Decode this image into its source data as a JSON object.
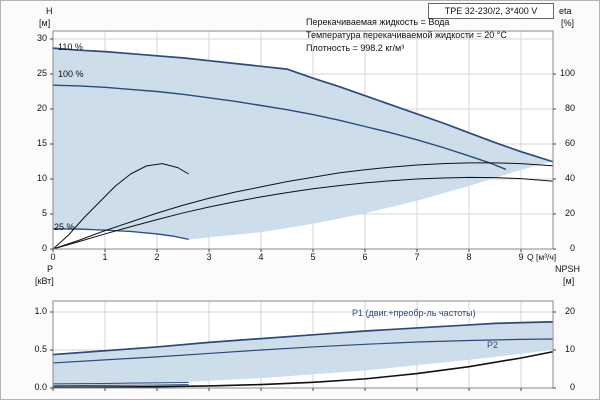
{
  "title_box": "TPE 32-230/2, 3*400 V",
  "info": {
    "line1": "Перекачиваемая жидкость = Вода",
    "line2": "Температура перекачиваемой жидкости = 20 °C",
    "line3": "Плотность = 998.2 кг/м³"
  },
  "labels": {
    "h": "H",
    "h_unit": "[м]",
    "eta": "eta",
    "eta_unit": "[%]",
    "q": "Q [м³/ч]",
    "p": "P",
    "p_unit": "[кВт]",
    "npsh": "NPSH",
    "npsh_unit": "[м]",
    "curve_110": "110 %",
    "curve_100": "100 %",
    "curve_25": "25 %",
    "p1": "P1 (двиг.+преобр-ль частоты)",
    "p2": "P2"
  },
  "colors": {
    "curve_blue": "#2b4a7d",
    "curve_black": "#111111",
    "envelope_fill": "#c8d9e8",
    "grid": "#d6d6d6"
  },
  "chart_data": [
    {
      "type": "line",
      "title": "H-Q pump curves with efficiency",
      "xlabel": "Q [м³/ч]",
      "ylabel": "H [м]",
      "y2label": "eta [%]",
      "xlim": [
        0,
        9.6
      ],
      "ylim": [
        0,
        31
      ],
      "y2lim": [
        0,
        124
      ],
      "grid": true,
      "x_ticks": [
        0,
        1,
        2,
        3,
        4,
        5,
        6,
        7,
        8,
        9
      ],
      "y_ticks": [
        0,
        5,
        10,
        15,
        20,
        25,
        30
      ],
      "y2_ticks": [
        0,
        20,
        40,
        60,
        80,
        100
      ],
      "envelope_fill": "#c8d9e8",
      "envelope": [
        [
          0,
          2.9
        ],
        [
          0.8,
          2.75
        ],
        [
          1.6,
          2.45
        ],
        [
          2.2,
          2.0
        ],
        [
          2.6,
          1.35
        ],
        [
          4,
          2.4
        ],
        [
          5,
          3.6
        ],
        [
          6,
          5.1
        ],
        [
          7,
          6.9
        ],
        [
          8,
          9.0
        ],
        [
          9,
          11.3
        ],
        [
          9.6,
          12.5
        ],
        [
          9.3,
          13.2
        ],
        [
          9,
          13.9
        ],
        [
          8.5,
          15.2
        ],
        [
          8,
          16.6
        ],
        [
          7.5,
          18.0
        ],
        [
          7,
          19.3
        ],
        [
          6.5,
          20.6
        ],
        [
          6,
          21.9
        ],
        [
          5.5,
          23.2
        ],
        [
          5,
          24.4
        ],
        [
          4.5,
          25.7
        ],
        [
          4,
          26.1
        ],
        [
          3.5,
          26.5
        ],
        [
          3,
          26.9
        ],
        [
          2.5,
          27.3
        ],
        [
          2,
          27.6
        ],
        [
          1.5,
          27.9
        ],
        [
          1,
          28.2
        ],
        [
          0.5,
          28.4
        ],
        [
          0,
          28.7
        ]
      ],
      "series": [
        {
          "name": "110 %",
          "axis": "y",
          "color": "#2b4a7d",
          "width": 1.7,
          "points": [
            [
              0,
              28.7
            ],
            [
              0.5,
              28.4
            ],
            [
              1,
              28.2
            ],
            [
              1.5,
              27.9
            ],
            [
              2,
              27.6
            ],
            [
              2.5,
              27.3
            ],
            [
              3,
              26.9
            ],
            [
              3.5,
              26.5
            ],
            [
              4,
              26.1
            ],
            [
              4.5,
              25.7
            ],
            [
              5,
              24.4
            ],
            [
              5.5,
              23.2
            ],
            [
              6,
              21.9
            ],
            [
              6.5,
              20.6
            ],
            [
              7,
              19.3
            ],
            [
              7.5,
              18.0
            ],
            [
              8,
              16.6
            ],
            [
              8.5,
              15.2
            ],
            [
              9,
              13.9
            ],
            [
              9.3,
              13.2
            ],
            [
              9.6,
              12.5
            ]
          ]
        },
        {
          "name": "100 %",
          "axis": "y",
          "color": "#2b4a7d",
          "width": 1.4,
          "points": [
            [
              0,
              23.4
            ],
            [
              0.5,
              23.3
            ],
            [
              1,
              23.1
            ],
            [
              1.5,
              22.8
            ],
            [
              2,
              22.5
            ],
            [
              2.5,
              22.1
            ],
            [
              3,
              21.6
            ],
            [
              3.5,
              21.1
            ],
            [
              4,
              20.5
            ],
            [
              4.5,
              19.9
            ],
            [
              5,
              19.2
            ],
            [
              5.5,
              18.4
            ],
            [
              6,
              17.5
            ],
            [
              6.5,
              16.6
            ],
            [
              7,
              15.6
            ],
            [
              7.5,
              14.5
            ],
            [
              8,
              13.3
            ],
            [
              8.4,
              12.3
            ],
            [
              8.7,
              11.4
            ]
          ]
        },
        {
          "name": "25 %",
          "axis": "y",
          "color": "#2b4a7d",
          "width": 1.3,
          "points": [
            [
              0,
              2.9
            ],
            [
              0.5,
              2.85
            ],
            [
              1,
              2.7
            ],
            [
              1.5,
              2.5
            ],
            [
              2,
              2.15
            ],
            [
              2.3,
              1.85
            ],
            [
              2.6,
              1.4
            ]
          ]
        },
        {
          "name": "eta pump",
          "axis": "y2",
          "color": "#111111",
          "width": 1,
          "points": [
            [
              0,
              0
            ],
            [
              0.5,
              5
            ],
            [
              1,
              10.5
            ],
            [
              1.5,
              15.5
            ],
            [
              2,
              20.5
            ],
            [
              2.5,
              25
            ],
            [
              3,
              29
            ],
            [
              3.5,
              32.5
            ],
            [
              4,
              35.5
            ],
            [
              4.5,
              38.5
            ],
            [
              5,
              41
            ],
            [
              5.5,
              43.5
            ],
            [
              6,
              45.3
            ],
            [
              6.5,
              46.8
            ],
            [
              7,
              48
            ],
            [
              7.5,
              48.8
            ],
            [
              8,
              49.2
            ],
            [
              8.5,
              49.2
            ],
            [
              9,
              48.8
            ],
            [
              9.6,
              47.6
            ]
          ]
        },
        {
          "name": "eta total",
          "axis": "y2",
          "color": "#111111",
          "width": 1,
          "points": [
            [
              0,
              0
            ],
            [
              0.5,
              4.2
            ],
            [
              1,
              8.6
            ],
            [
              1.5,
              12.8
            ],
            [
              2,
              16.8
            ],
            [
              2.5,
              20.6
            ],
            [
              3,
              24
            ],
            [
              3.5,
              27
            ],
            [
              4,
              29.8
            ],
            [
              4.5,
              32.2
            ],
            [
              5,
              34.4
            ],
            [
              5.5,
              36.2
            ],
            [
              6,
              37.8
            ],
            [
              6.5,
              39
            ],
            [
              7,
              40
            ],
            [
              7.5,
              40.6
            ],
            [
              8,
              40.9
            ],
            [
              8.5,
              40.8
            ],
            [
              9,
              40.2
            ],
            [
              9.6,
              38.8
            ]
          ]
        },
        {
          "name": "eta reduced speed",
          "axis": "y2",
          "color": "#111111",
          "width": 1,
          "points": [
            [
              0,
              0
            ],
            [
              0.3,
              8
            ],
            [
              0.6,
              18
            ],
            [
              0.9,
              27
            ],
            [
              1.2,
              36
            ],
            [
              1.5,
              43
            ],
            [
              1.8,
              47.5
            ],
            [
              2.1,
              48.8
            ],
            [
              2.4,
              46.5
            ],
            [
              2.6,
              43
            ]
          ]
        }
      ]
    },
    {
      "type": "line",
      "title": "Power and NPSH curves",
      "xlabel": "Q [м³/ч]",
      "ylabel": "P [кВт]",
      "y2label": "NPSH [м]",
      "xlim": [
        0,
        9.6
      ],
      "ylim": [
        0,
        1.14
      ],
      "y2lim": [
        0,
        22.9
      ],
      "grid": true,
      "x_ticks": [
        0,
        1,
        2,
        3,
        4,
        5,
        6,
        7,
        8,
        9
      ],
      "y_ticks": [
        0,
        0.5,
        1.0
      ],
      "y2_ticks": [
        0,
        10,
        20
      ],
      "envelope_fill": "#c8d9e8",
      "envelope": [
        [
          0,
          0.02
        ],
        [
          2,
          0.06
        ],
        [
          4,
          0.13
        ],
        [
          6,
          0.23
        ],
        [
          8,
          0.37
        ],
        [
          9,
          0.45
        ],
        [
          9.6,
          0.5
        ],
        [
          9.6,
          0.87
        ],
        [
          9,
          0.86
        ],
        [
          8.5,
          0.85
        ],
        [
          8,
          0.83
        ],
        [
          7,
          0.79
        ],
        [
          6,
          0.75
        ],
        [
          5,
          0.7
        ],
        [
          4,
          0.65
        ],
        [
          3,
          0.6
        ],
        [
          2,
          0.54
        ],
        [
          1,
          0.49
        ],
        [
          0,
          0.44
        ]
      ],
      "series": [
        {
          "name": "P1",
          "axis": "y",
          "color": "#2b4a7d",
          "width": 1.7,
          "points": [
            [
              0,
              0.44
            ],
            [
              1,
              0.49
            ],
            [
              2,
              0.54
            ],
            [
              3,
              0.6
            ],
            [
              4,
              0.65
            ],
            [
              5,
              0.7
            ],
            [
              6,
              0.75
            ],
            [
              7,
              0.79
            ],
            [
              8,
              0.83
            ],
            [
              8.5,
              0.85
            ],
            [
              9,
              0.86
            ],
            [
              9.6,
              0.87
            ]
          ]
        },
        {
          "name": "P2",
          "axis": "y",
          "color": "#2b4a7d",
          "width": 1.2,
          "points": [
            [
              0,
              0.33
            ],
            [
              1,
              0.37
            ],
            [
              2,
              0.41
            ],
            [
              3,
              0.455
            ],
            [
              4,
              0.5
            ],
            [
              5,
              0.54
            ],
            [
              6,
              0.575
            ],
            [
              7,
              0.605
            ],
            [
              8,
              0.625
            ],
            [
              9,
              0.64
            ],
            [
              9.6,
              0.645
            ]
          ]
        },
        {
          "name": "P1 min speed",
          "axis": "y",
          "color": "#2b4a7d",
          "width": 1,
          "points": [
            [
              0,
              0.055
            ],
            [
              1,
              0.06
            ],
            [
              2,
              0.068
            ],
            [
              2.6,
              0.072
            ]
          ]
        },
        {
          "name": "P2 min speed",
          "axis": "y",
          "color": "#2b4a7d",
          "width": 1,
          "points": [
            [
              0,
              0.03
            ],
            [
              1,
              0.034
            ],
            [
              2,
              0.04
            ],
            [
              2.6,
              0.044
            ]
          ]
        },
        {
          "name": "NPSH",
          "axis": "y2",
          "color": "#111111",
          "width": 1.6,
          "points": [
            [
              0,
              0.2
            ],
            [
              1,
              0.25
            ],
            [
              2,
              0.35
            ],
            [
              3,
              0.55
            ],
            [
              4,
              0.9
            ],
            [
              5,
              1.5
            ],
            [
              6,
              2.4
            ],
            [
              7,
              3.8
            ],
            [
              8,
              5.6
            ],
            [
              9,
              7.9
            ],
            [
              9.6,
              9.5
            ]
          ]
        }
      ]
    }
  ]
}
